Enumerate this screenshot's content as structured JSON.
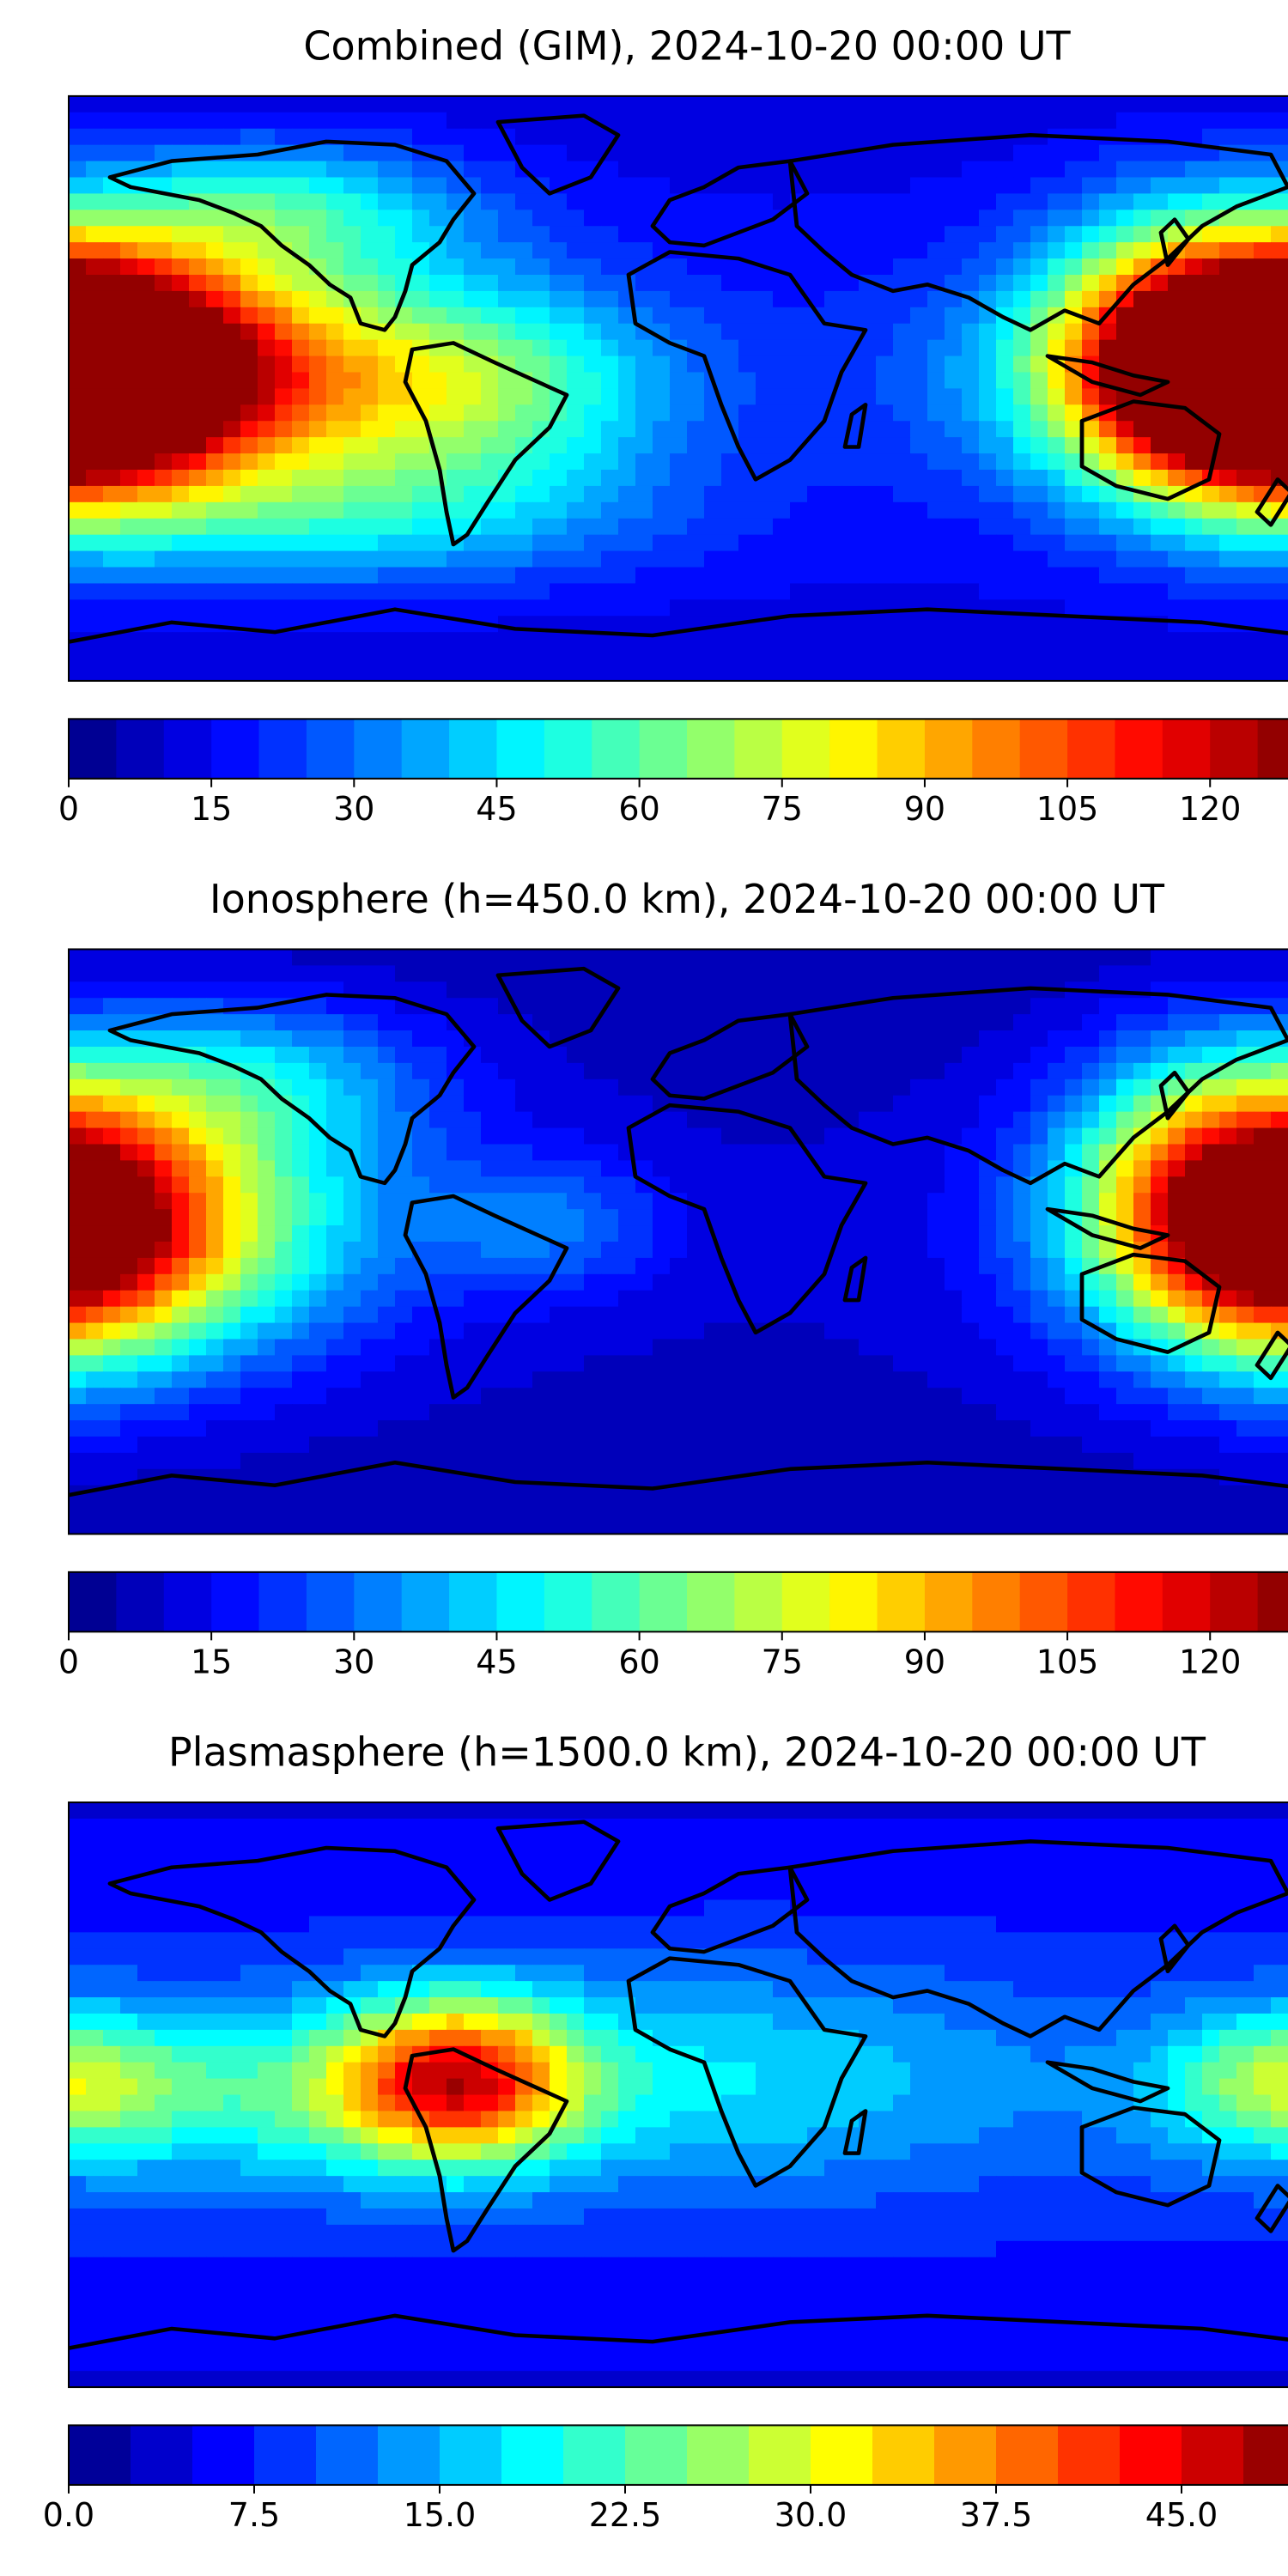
{
  "figure": {
    "panels": [
      {
        "title": "Combined (GIM), 2024-10-20 00:00 UT",
        "colorbar": {
          "ticks": [
            "0",
            "15",
            "30",
            "45",
            "60",
            "75",
            "90",
            "105",
            "120"
          ],
          "tick_values": [
            0,
            15,
            30,
            45,
            60,
            75,
            90,
            105,
            120
          ],
          "vmin": 0,
          "vmax": 130,
          "levels": 26
        },
        "blobs": [
          {
            "lon": -170,
            "lat": 5,
            "sx": 55,
            "sy": 25,
            "amp": 120
          },
          {
            "lon": 175,
            "lat": 5,
            "sx": 30,
            "sy": 25,
            "amp": 110
          },
          {
            "lon": -60,
            "lat": 0,
            "sx": 40,
            "sy": 22,
            "amp": 40
          },
          {
            "lon": 140,
            "lat": 15,
            "sx": 25,
            "sy": 30,
            "amp": 40
          },
          {
            "lon": -120,
            "lat": 55,
            "sx": 40,
            "sy": 15,
            "amp": 35
          },
          {
            "lon": -100,
            "lat": -40,
            "sx": 60,
            "sy": 15,
            "amp": 25
          }
        ],
        "base": 18
      },
      {
        "title": "Ionosphere  (h=450.0 km), 2024-10-20 00:00 UT",
        "colorbar": {
          "ticks": [
            "0",
            "15",
            "30",
            "45",
            "60",
            "75",
            "90",
            "105",
            "120"
          ],
          "tick_values": [
            0,
            15,
            30,
            45,
            60,
            75,
            90,
            105,
            120
          ],
          "vmin": 0,
          "vmax": 130,
          "levels": 26
        },
        "blobs": [
          {
            "lon": -170,
            "lat": 5,
            "sx": 50,
            "sy": 28,
            "amp": 80
          },
          {
            "lon": 175,
            "lat": 5,
            "sx": 28,
            "sy": 28,
            "amp": 75
          },
          {
            "lon": 145,
            "lat": 20,
            "sx": 25,
            "sy": 30,
            "amp": 35
          },
          {
            "lon": -130,
            "lat": 50,
            "sx": 40,
            "sy": 18,
            "amp": 30
          },
          {
            "lon": -40,
            "lat": 5,
            "sx": 25,
            "sy": 15,
            "amp": 20
          }
        ],
        "base": 10
      },
      {
        "title": "Plasmasphere (h=1500.0 km), 2024-10-20 00:00 UT",
        "colorbar": {
          "ticks": [
            "0.0",
            "7.5",
            "15.0",
            "22.5",
            "30.0",
            "37.5",
            "45.0"
          ],
          "tick_values": [
            0,
            7.5,
            15,
            22.5,
            30,
            37.5,
            45
          ],
          "vmin": 0,
          "vmax": 50,
          "levels": 20
        },
        "blobs": [
          {
            "lon": -67,
            "lat": 5,
            "sx": 25,
            "sy": 18,
            "amp": 30
          },
          {
            "lon": -130,
            "lat": 0,
            "sx": 60,
            "sy": 20,
            "amp": 12
          },
          {
            "lon": 20,
            "lat": 5,
            "sx": 60,
            "sy": 25,
            "amp": 9
          },
          {
            "lon": 175,
            "lat": 5,
            "sx": 25,
            "sy": 15,
            "amp": 14
          }
        ],
        "base": 8
      }
    ],
    "map_colors": {
      "coastline": "#000000",
      "frame": "#000000",
      "jet": [
        "#00007f",
        "#0000ff",
        "#007fff",
        "#00ffff",
        "#7fff7f",
        "#ffff00",
        "#ff7f00",
        "#ff0000",
        "#7f0000"
      ]
    }
  }
}
